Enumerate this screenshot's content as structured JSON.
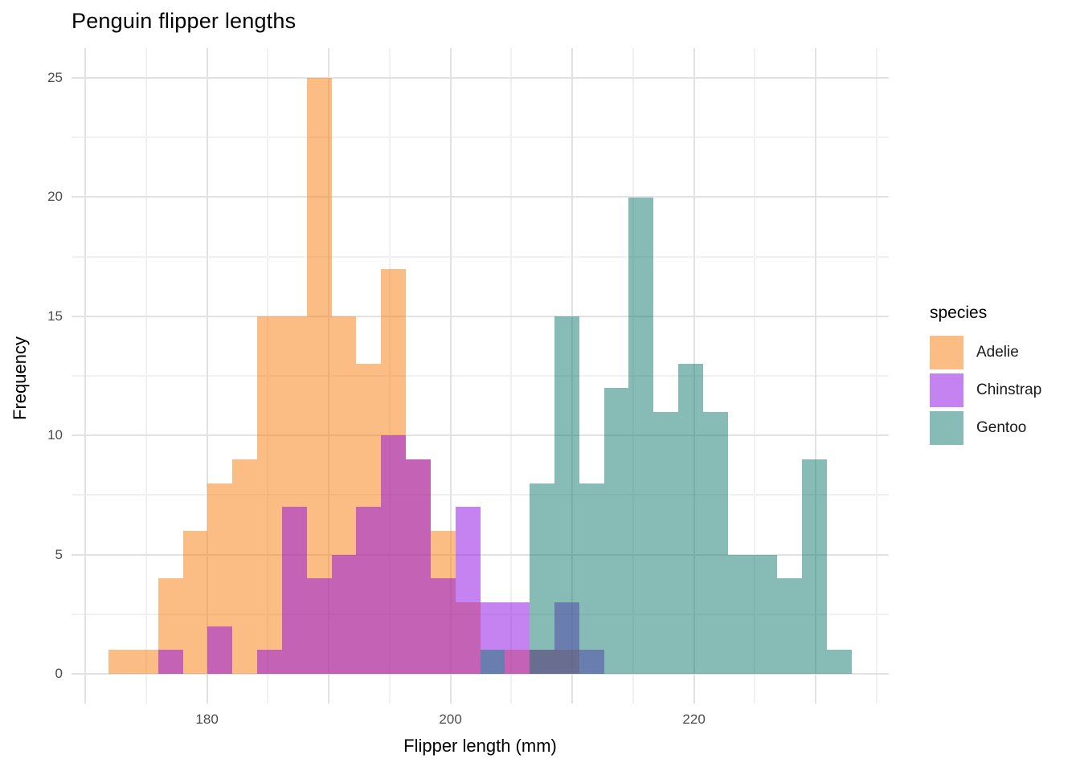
{
  "title": "Penguin flipper lengths",
  "x_axis_title": "Flipper length (mm)",
  "y_axis_title": "Frequency",
  "legend": {
    "title": "species",
    "entries": [
      "Adelie",
      "Chinstrap",
      "Gentoo"
    ]
  },
  "colors": {
    "adelie_fill": "rgba(249,124,10,0.5)",
    "chinstrap_fill": "rgba(140,8,230,0.5)",
    "gentoo_fill": "rgba(13,121,107,0.5)",
    "grid_major": "#e2e2e2",
    "grid_minor": "#f1f1f1",
    "tick_text": "#4d4d4d"
  },
  "chart_data": {
    "type": "bar",
    "subtype": "overlaid-histogram",
    "title": "Penguin flipper lengths",
    "xlabel": "Flipper length (mm)",
    "ylabel": "Frequency",
    "legend_title": "species",
    "legend_position": "right",
    "grid": true,
    "bin_start": 171.92,
    "bin_width": 2.03448,
    "n_bins": 30,
    "xlim": [
      168.87,
      236.0
    ],
    "ylim": [
      -1.25,
      26.25
    ],
    "x_major_gridlines": [
      170,
      180,
      190,
      200,
      210,
      220,
      230
    ],
    "x_minor_gridlines": [
      175,
      185,
      195,
      205,
      215,
      225,
      235
    ],
    "y_major_gridlines": [
      0,
      5,
      10,
      15,
      20,
      25
    ],
    "y_minor_gridlines": [
      2.5,
      7.5,
      12.5,
      17.5,
      22.5
    ],
    "x_tick_labels": [
      {
        "value": 180,
        "label": "180"
      },
      {
        "value": 200,
        "label": "200"
      },
      {
        "value": 220,
        "label": "220"
      }
    ],
    "y_tick_labels": [
      {
        "value": 0,
        "label": "0"
      },
      {
        "value": 5,
        "label": "5"
      },
      {
        "value": 10,
        "label": "10"
      },
      {
        "value": 15,
        "label": "15"
      },
      {
        "value": 20,
        "label": "20"
      },
      {
        "value": 25,
        "label": "25"
      }
    ],
    "series": [
      {
        "name": "Adelie",
        "color": "rgba(249,124,10,0.5)",
        "counts": [
          1,
          1,
          4,
          6,
          8,
          9,
          15,
          15,
          25,
          15,
          13,
          17,
          9,
          6,
          3,
          0,
          1,
          1,
          1,
          0,
          0,
          0,
          0,
          0,
          0,
          0,
          0,
          0,
          0,
          0
        ]
      },
      {
        "name": "Chinstrap",
        "color": "rgba(140,8,230,0.5)",
        "counts": [
          0,
          0,
          1,
          0,
          2,
          0,
          1,
          7,
          4,
          5,
          7,
          10,
          9,
          4,
          7,
          3,
          3,
          1,
          3,
          1,
          0,
          0,
          0,
          0,
          0,
          0,
          0,
          0,
          0,
          0
        ]
      },
      {
        "name": "Gentoo",
        "color": "rgba(13,121,107,0.5)",
        "counts": [
          0,
          0,
          0,
          0,
          0,
          0,
          0,
          0,
          0,
          0,
          0,
          0,
          0,
          0,
          0,
          1,
          0,
          8,
          15,
          8,
          12,
          20,
          11,
          13,
          11,
          5,
          5,
          4,
          9,
          1
        ]
      }
    ]
  }
}
